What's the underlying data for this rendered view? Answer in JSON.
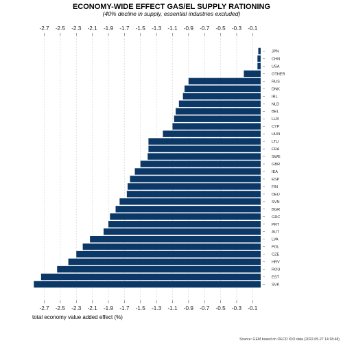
{
  "chart_data": {
    "type": "bar",
    "orientation": "horizontal",
    "title": "ECONOMY-WIDE EFFECT GAS/EL SUPPLY RATIONING",
    "subtitle": "(40% decline in supply, essential industries excluded)",
    "xlabel": "total economy value added effect (%)",
    "ylabel": "",
    "caption": "Source: GEM based on OECD IOO data (2022-05-27 14:18:48)",
    "xlim": [
      -2.85,
      0.0
    ],
    "x_ticks": [
      -2.7,
      -2.5,
      -2.3,
      -2.1,
      -1.9,
      -1.7,
      -1.5,
      -1.3,
      -1.1,
      -0.9,
      -0.7,
      -0.5,
      -0.3,
      -0.1
    ],
    "x_tick_labels": [
      "-2.7",
      "-2.5",
      "-2.3",
      "-2.1",
      "-1.9",
      "-1.7",
      "-1.5",
      "-1.3",
      "-1.1",
      "-0.9",
      "-0.7",
      "-0.5",
      "-0.3",
      "-0.1"
    ],
    "axis_position": "top and bottom",
    "grid": true,
    "bar_color": "#0b3866",
    "categories": [
      "JPN",
      "CHN",
      "USA",
      "OTHER",
      "RUS",
      "DNK",
      "IRL",
      "NLD",
      "BEL",
      "LUX",
      "CYP",
      "HUN",
      "LTU",
      "FRA",
      "SWE",
      "GBR",
      "IEA",
      "ESP",
      "FIN",
      "DEU",
      "SVN",
      "BGR",
      "GRC",
      "PRT",
      "AUT",
      "LVA",
      "POL",
      "CZE",
      "HRV",
      "ROU",
      "EST",
      "SVK"
    ],
    "values": [
      -0.03,
      -0.04,
      -0.04,
      -0.21,
      -0.9,
      -0.95,
      -0.97,
      -1.02,
      -1.06,
      -1.08,
      -1.1,
      -1.22,
      -1.4,
      -1.4,
      -1.41,
      -1.5,
      -1.57,
      -1.63,
      -1.66,
      -1.67,
      -1.76,
      -1.81,
      -1.88,
      -1.9,
      -1.96,
      -2.13,
      -2.22,
      -2.3,
      -2.4,
      -2.54,
      -2.74,
      -2.83
    ]
  }
}
